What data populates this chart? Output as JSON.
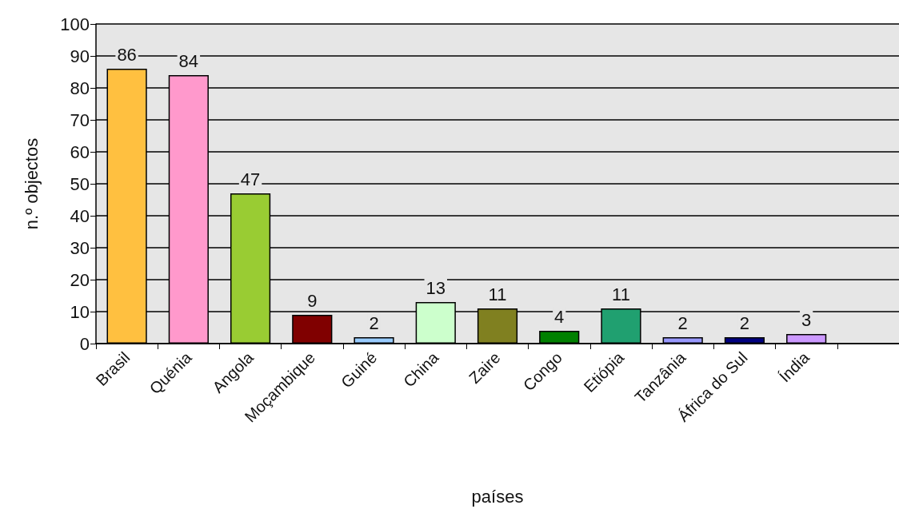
{
  "chart_data": {
    "type": "bar",
    "xlabel": "países",
    "ylabel": "n.º objectos",
    "categories": [
      "Brasil",
      "Quénia",
      "Angola",
      "Moçambique",
      "Guiné",
      "China",
      "Zaire",
      "Congo",
      "Etiópia",
      "Tanzânia",
      "África do Sul",
      "Índia",
      null
    ],
    "values": [
      86,
      84,
      47,
      9,
      2,
      13,
      11,
      4,
      11,
      2,
      2,
      3,
      null
    ],
    "colors": [
      "#ffc040",
      "#ff99cc",
      "#99cc33",
      "#800000",
      "#99ccff",
      "#ccffcc",
      "#808020",
      "#008000",
      "#20a070",
      "#9999ff",
      "#000080",
      "#cc99ff",
      "#cccccc"
    ],
    "ylim": [
      0,
      100
    ],
    "yticks": [
      0,
      10,
      20,
      30,
      40,
      50,
      60,
      70,
      80,
      90,
      100
    ],
    "grid": "y",
    "data_labels": true
  }
}
